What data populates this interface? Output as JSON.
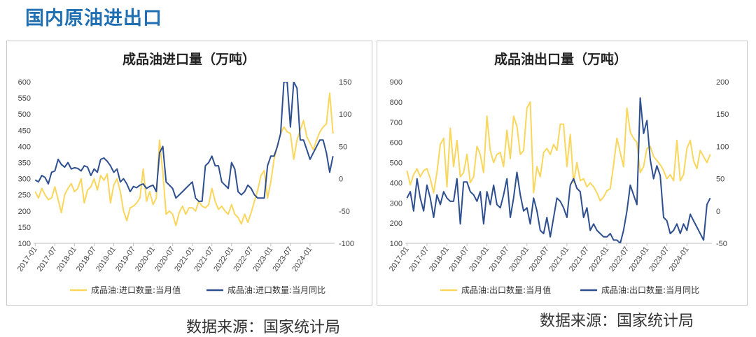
{
  "page_title": "国内原油进出口",
  "source_left": "数据来源：国家统计局",
  "source_right": "数据来源：国家统计局",
  "chart_data": [
    {
      "type": "line",
      "title": "成品油进口量（万吨）",
      "x_tick_labels": [
        "2017-01",
        "2017-07",
        "2018-01",
        "2018-07",
        "2019-01",
        "2019-07",
        "2020-01",
        "2020-07",
        "2021-01",
        "2021-07",
        "2022-01",
        "2022-07",
        "2023-01",
        "2023-07",
        "2024-01"
      ],
      "n_months": 92,
      "y_left": {
        "min": 100,
        "max": 600,
        "ticks": [
          100,
          150,
          200,
          250,
          300,
          350,
          400,
          450,
          500,
          550,
          600
        ]
      },
      "y_right": {
        "min": -100,
        "max": 150,
        "ticks": [
          -100,
          -50,
          0,
          50,
          100,
          150
        ]
      },
      "series": [
        {
          "name": "成品油:进口数量:当月值",
          "axis": "left",
          "color": "#f9d65c",
          "values": [
            260,
            240,
            270,
            250,
            235,
            240,
            275,
            235,
            195,
            250,
            270,
            285,
            260,
            270,
            300,
            225,
            265,
            275,
            300,
            265,
            310,
            295,
            315,
            225,
            280,
            300,
            260,
            200,
            170,
            210,
            215,
            225,
            240,
            330,
            230,
            260,
            220,
            240,
            420,
            320,
            190,
            200,
            190,
            155,
            195,
            215,
            190,
            210,
            210,
            200,
            230,
            215,
            210,
            220,
            270,
            230,
            205,
            215,
            200,
            190,
            220,
            190,
            180,
            160,
            190,
            165,
            195,
            230,
            265,
            310,
            325,
            240,
            290,
            360,
            400,
            440,
            460,
            445,
            440,
            360,
            420,
            450,
            480,
            430,
            410,
            390,
            420,
            445,
            460,
            470,
            565,
            440
          ]
        },
        {
          "name": "成品油:进口数量:当月同比",
          "axis": "right",
          "color": "#2e4f8f",
          "values": [
            -2,
            -5,
            5,
            2,
            -8,
            10,
            12,
            30,
            22,
            18,
            25,
            15,
            17,
            16,
            12,
            20,
            18,
            5,
            15,
            10,
            30,
            32,
            27,
            20,
            10,
            15,
            -5,
            0,
            -8,
            -20,
            -12,
            -14,
            -10,
            -8,
            -15,
            -12,
            -10,
            -20,
            40,
            50,
            -5,
            -10,
            -15,
            -30,
            -25,
            -20,
            -15,
            -10,
            -5,
            -30,
            -35,
            -35,
            20,
            25,
            35,
            20,
            20,
            -5,
            -10,
            -15,
            25,
            15,
            -20,
            -25,
            -20,
            -10,
            -15,
            -25,
            -30,
            -30,
            -30,
            20,
            35,
            35,
            50,
            70,
            150,
            150,
            80,
            150,
            140,
            60,
            60,
            45,
            30,
            40,
            50,
            60,
            60,
            40,
            10,
            35
          ]
        }
      ]
    },
    {
      "type": "line",
      "title": "成品油出口量（万吨）",
      "x_tick_labels": [
        "2017-01",
        "2017-07",
        "2018-01",
        "2018-07",
        "2019-01",
        "2019-07",
        "2020-01",
        "2020-07",
        "2021-01",
        "2021-07",
        "2022-01",
        "2022-07",
        "2023-01",
        "2023-07",
        "2024-01"
      ],
      "n_months": 92,
      "y_left": {
        "min": 100,
        "max": 900,
        "ticks": [
          100,
          200,
          300,
          400,
          500,
          600,
          700,
          800,
          900
        ]
      },
      "y_right": {
        "min": -50,
        "max": 200,
        "ticks": [
          -50,
          0,
          50,
          100,
          150,
          200
        ]
      },
      "series": [
        {
          "name": "成品油:出口数量:当月值",
          "axis": "left",
          "color": "#f9d65c",
          "values": [
            460,
            390,
            440,
            470,
            430,
            460,
            470,
            420,
            350,
            450,
            590,
            620,
            380,
            670,
            480,
            610,
            430,
            450,
            540,
            400,
            430,
            580,
            540,
            450,
            730,
            560,
            500,
            540,
            550,
            480,
            660,
            520,
            730,
            680,
            540,
            560,
            770,
            800,
            350,
            480,
            430,
            550,
            570,
            540,
            590,
            560,
            690,
            690,
            480,
            640,
            400,
            500,
            410,
            420,
            380,
            400,
            380,
            350,
            310,
            330,
            360,
            370,
            490,
            620,
            550,
            480,
            770,
            650,
            620,
            600,
            450,
            480,
            570,
            580,
            530,
            510,
            490,
            460,
            420,
            440,
            410,
            610,
            410,
            440,
            570,
            610,
            510,
            470,
            560,
            530,
            500,
            540
          ]
        },
        {
          "name": "成品油:出口数量:当月同比",
          "axis": "right",
          "color": "#2e4f8f",
          "values": [
            20,
            30,
            0,
            50,
            20,
            0,
            40,
            20,
            -10,
            25,
            10,
            30,
            20,
            15,
            15,
            50,
            -20,
            45,
            45,
            30,
            25,
            15,
            30,
            -20,
            30,
            10,
            40,
            10,
            5,
            25,
            50,
            -10,
            20,
            60,
            25,
            0,
            5,
            -20,
            20,
            0,
            -30,
            -35,
            -10,
            -40,
            -10,
            20,
            15,
            5,
            -10,
            40,
            50,
            35,
            30,
            -10,
            5,
            -30,
            -20,
            -30,
            -35,
            -40,
            -40,
            -35,
            -45,
            -45,
            -50,
            -30,
            0,
            40,
            25,
            10,
            175,
            120,
            140,
            80,
            50,
            70,
            55,
            -10,
            -15,
            -35,
            -30,
            -20,
            -35,
            -20,
            -30,
            -5,
            -15,
            -25,
            -35,
            -45,
            10,
            20
          ]
        }
      ]
    }
  ]
}
